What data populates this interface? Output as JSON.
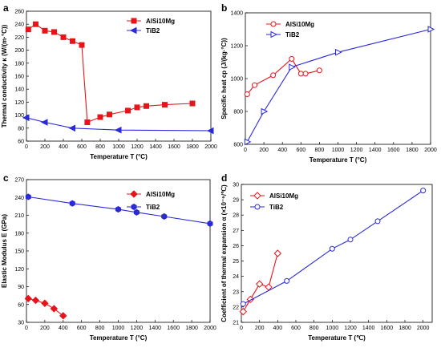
{
  "figure": {
    "colors": {
      "AlSi10Mg": "#e8141b",
      "TiB2": "#2a2ad8"
    }
  },
  "chart_data": [
    {
      "panel": "a",
      "type": "line",
      "xlabel": "Temperature T (°C)",
      "ylabel": "Thermal conductivity κ (W/(m·°C))",
      "xlim": [
        0,
        2000
      ],
      "ylim": [
        60,
        260
      ],
      "xticks": [
        0,
        200,
        400,
        600,
        800,
        1000,
        1200,
        1400,
        1600,
        1800,
        2000
      ],
      "yticks": [
        60,
        80,
        100,
        120,
        140,
        160,
        180,
        200,
        220,
        240,
        260
      ],
      "legend_position": "top-right",
      "series": [
        {
          "name": "AlSi10Mg",
          "marker": "square",
          "color": "#e8141b",
          "fill": "filled",
          "x": [
            20,
            100,
            200,
            300,
            400,
            500,
            600,
            660,
            800,
            900,
            1100,
            1200,
            1300,
            1500,
            1800
          ],
          "y": [
            232,
            240,
            230,
            228,
            220,
            214,
            208,
            89,
            97,
            101,
            107,
            112,
            114,
            116,
            118
          ]
        },
        {
          "name": "TiB2",
          "marker": "triangle-left",
          "color": "#2a2ad8",
          "fill": "filled",
          "x": [
            0,
            200,
            500,
            1000,
            2000
          ],
          "y": [
            96,
            89,
            80,
            77,
            76
          ]
        }
      ]
    },
    {
      "panel": "b",
      "type": "line",
      "xlabel": "Temperature T (°C)",
      "ylabel": "Specific heat cp (J/(kg·°C))",
      "xlim": [
        0,
        2000
      ],
      "ylim": [
        600,
        1400
      ],
      "xticks": [
        0,
        200,
        400,
        600,
        800,
        1000,
        1200,
        1400,
        1600,
        1800,
        2000
      ],
      "yticks": [
        600,
        800,
        1000,
        1200,
        1400
      ],
      "legend_position": "top-left",
      "series": [
        {
          "name": "AlSi10Mg",
          "marker": "circle",
          "color": "#e8141b",
          "fill": "open",
          "x": [
            20,
            100,
            300,
            500,
            600,
            650,
            800
          ],
          "y": [
            905,
            960,
            1020,
            1120,
            1030,
            1030,
            1050
          ]
        },
        {
          "name": "TiB2",
          "marker": "triangle-right",
          "color": "#2a2ad8",
          "fill": "open",
          "x": [
            20,
            200,
            500,
            1000,
            2000
          ],
          "y": [
            615,
            800,
            1070,
            1160,
            1300
          ]
        }
      ]
    },
    {
      "panel": "c",
      "type": "line",
      "xlabel": "Temperature T (°C)",
      "ylabel": "Elastic Modulus E (GPa)",
      "xlim": [
        0,
        2000
      ],
      "ylim": [
        30,
        270
      ],
      "xticks": [
        0,
        200,
        400,
        600,
        800,
        1000,
        1200,
        1400,
        1600,
        1800,
        2000
      ],
      "yticks": [
        30,
        60,
        90,
        120,
        150,
        180,
        210,
        240,
        270
      ],
      "legend_position": "top-right",
      "series": [
        {
          "name": "AlSi10Mg",
          "marker": "diamond",
          "color": "#e8141b",
          "fill": "filled",
          "x": [
            20,
            100,
            200,
            300,
            400
          ],
          "y": [
            70,
            67,
            62,
            53,
            41
          ]
        },
        {
          "name": "TiB2",
          "marker": "hexagon",
          "color": "#2a2ad8",
          "fill": "filled",
          "x": [
            20,
            500,
            1000,
            1200,
            1500,
            2000
          ],
          "y": [
            241,
            230,
            220,
            215,
            208,
            196
          ]
        }
      ]
    },
    {
      "panel": "d",
      "type": "line",
      "xlabel": "Temperature T (℃)",
      "ylabel": "Coefficient of thermal expansion α (×10⁻⁶/℃)",
      "xlim": [
        0,
        2100
      ],
      "ylim": [
        21,
        30
      ],
      "xticks": [
        0,
        200,
        400,
        600,
        800,
        1000,
        1200,
        1400,
        1600,
        1800,
        2000
      ],
      "yticks": [
        21,
        22,
        23,
        24,
        25,
        26,
        27,
        28,
        29,
        30
      ],
      "legend_position": "top-left",
      "series": [
        {
          "name": "AlSi10Mg",
          "marker": "diamond",
          "color": "#e8141b",
          "fill": "open",
          "x": [
            20,
            100,
            200,
            300,
            400
          ],
          "y": [
            21.7,
            22.5,
            23.5,
            23.3,
            25.5
          ]
        },
        {
          "name": "TiB2",
          "marker": "circle",
          "color": "#2a2ad8",
          "fill": "open",
          "x": [
            20,
            500,
            1000,
            1200,
            1500,
            2000
          ],
          "y": [
            22.2,
            23.7,
            25.8,
            26.4,
            27.6,
            29.6
          ]
        }
      ]
    }
  ]
}
